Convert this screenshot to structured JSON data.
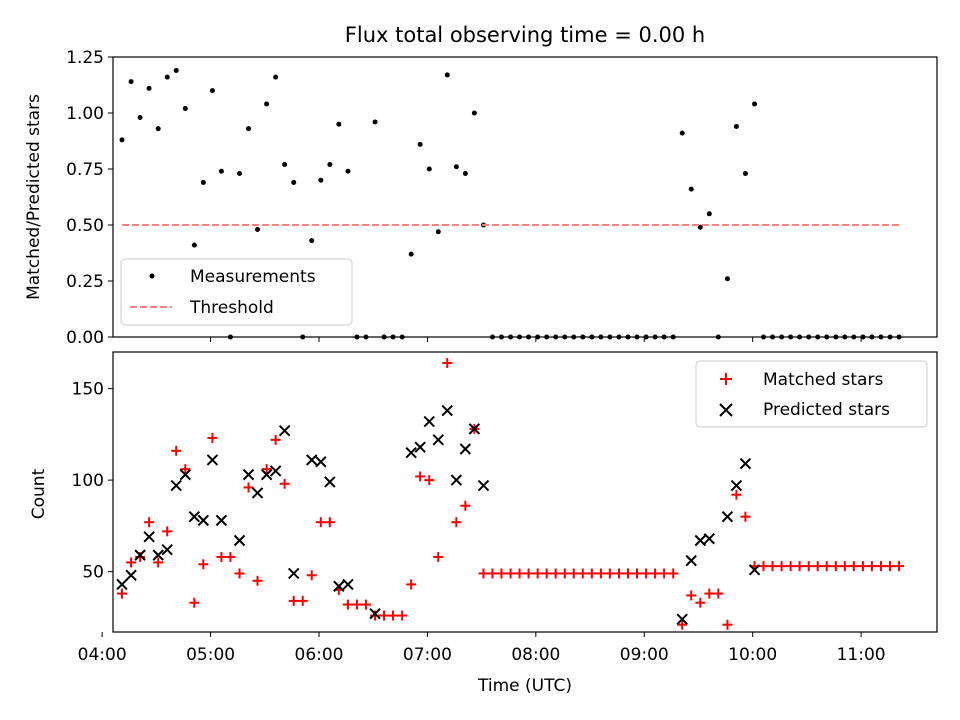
{
  "chart_data": [
    {
      "type": "scatter",
      "title": "Flux total observing time = 0.00 h",
      "xlabel": "",
      "ylabel": "Matched/Predicted stars",
      "xlim": [
        4.1,
        11.7
      ],
      "ylim": [
        0,
        1.25
      ],
      "yticks": [
        0,
        0.25,
        0.5,
        0.75,
        1.0,
        1.25
      ],
      "ytick_labels": [
        "0.00",
        "0.25",
        "0.50",
        "0.75",
        "1.00",
        "1.25"
      ],
      "legend_position": "lower-left",
      "series": [
        {
          "name": "Measurements",
          "marker": "dot",
          "color": "#000000",
          "x": [
            4.183,
            4.267,
            4.35,
            4.433,
            4.517,
            4.6,
            4.683,
            4.767,
            4.85,
            4.933,
            5.017,
            5.1,
            5.183,
            5.267,
            5.35,
            5.433,
            5.517,
            5.6,
            5.683,
            5.767,
            5.85,
            5.933,
            6.017,
            6.1,
            6.183,
            6.267,
            6.35,
            6.433,
            6.517,
            6.6,
            6.683,
            6.767,
            6.85,
            6.933,
            7.017,
            7.1,
            7.183,
            7.267,
            7.35,
            7.433,
            7.517,
            7.6,
            7.683,
            7.767,
            7.85,
            7.933,
            8.017,
            8.1,
            8.183,
            8.267,
            8.35,
            8.433,
            8.517,
            8.6,
            8.683,
            8.767,
            8.85,
            8.933,
            9.017,
            9.1,
            9.183,
            9.267,
            9.35,
            9.433,
            9.517,
            9.6,
            9.683,
            9.767,
            9.85,
            9.933,
            10.017,
            10.1,
            10.183,
            10.267,
            10.35,
            10.433,
            10.517,
            10.6,
            10.683,
            10.767,
            10.85,
            10.933,
            11.017,
            11.1,
            11.183,
            11.267,
            11.35
          ],
          "y": [
            0.88,
            1.14,
            0.98,
            1.11,
            0.93,
            1.16,
            1.19,
            1.02,
            0.41,
            0.69,
            1.1,
            0.74,
            0.0,
            0.73,
            0.93,
            0.48,
            1.04,
            1.16,
            0.77,
            0.69,
            0.0,
            0.43,
            0.7,
            0.77,
            0.95,
            0.74,
            0.0,
            0.0,
            0.96,
            0.0,
            0.0,
            0.0,
            0.37,
            0.86,
            0.75,
            0.47,
            1.17,
            0.76,
            0.73,
            1.0,
            0.5,
            0.0,
            0.0,
            0.0,
            0.0,
            0.0,
            0.0,
            0.0,
            0.0,
            0.0,
            0.0,
            0.0,
            0.0,
            0.0,
            0.0,
            0.0,
            0.0,
            0.0,
            0.0,
            0.0,
            0.0,
            0.0,
            0.91,
            0.66,
            0.49,
            0.55,
            0.0,
            0.26,
            0.94,
            0.73,
            1.04,
            0.0,
            0.0,
            0.0,
            0.0,
            0.0,
            0.0,
            0.0,
            0.0,
            0.0,
            0.0,
            0.0,
            0.0,
            0.0,
            0.0,
            0.0,
            0.0
          ]
        },
        {
          "name": "Threshold",
          "style": "dashed",
          "color": "#ff8080",
          "x": [
            4.183,
            11.35
          ],
          "y": [
            0.5,
            0.5
          ]
        }
      ]
    },
    {
      "type": "scatter",
      "title": "",
      "xlabel": "Time (UTC)",
      "ylabel": "Count",
      "xlim": [
        4.1,
        11.7
      ],
      "ylim": [
        17,
        170
      ],
      "yticks": [
        50,
        100,
        150
      ],
      "ytick_labels": [
        "50",
        "100",
        "150"
      ],
      "xticks": [
        4,
        5,
        6,
        7,
        8,
        9,
        10,
        11
      ],
      "xtick_labels": [
        "04:00",
        "05:00",
        "06:00",
        "07:00",
        "08:00",
        "09:00",
        "10:00",
        "11:00"
      ],
      "legend_position": "top-right",
      "series": [
        {
          "name": "Matched stars",
          "marker": "plus",
          "color": "#ff0000",
          "x": [
            4.183,
            4.267,
            4.35,
            4.433,
            4.517,
            4.6,
            4.683,
            4.767,
            4.85,
            4.933,
            5.017,
            5.1,
            5.183,
            5.267,
            5.35,
            5.433,
            5.517,
            5.6,
            5.683,
            5.767,
            5.85,
            5.933,
            6.017,
            6.1,
            6.183,
            6.267,
            6.35,
            6.433,
            6.517,
            6.6,
            6.683,
            6.767,
            6.85,
            6.933,
            7.017,
            7.1,
            7.183,
            7.267,
            7.35,
            7.433,
            7.517,
            7.6,
            7.683,
            7.767,
            7.85,
            7.933,
            8.017,
            8.1,
            8.183,
            8.267,
            8.35,
            8.433,
            8.517,
            8.6,
            8.683,
            8.767,
            8.85,
            8.933,
            9.017,
            9.1,
            9.183,
            9.267,
            9.35,
            9.433,
            9.517,
            9.6,
            9.683,
            9.767,
            9.85,
            9.933,
            10.017,
            10.1,
            10.183,
            10.267,
            10.35,
            10.433,
            10.517,
            10.6,
            10.683,
            10.767,
            10.85,
            10.933,
            11.017,
            11.1,
            11.183,
            11.267,
            11.35
          ],
          "y": [
            38,
            55,
            58,
            77,
            55,
            72,
            116,
            106,
            33,
            54,
            123,
            58,
            58,
            49,
            96,
            45,
            106,
            122,
            98,
            34,
            34,
            48,
            77,
            77,
            40,
            32,
            32,
            32,
            26,
            26,
            26,
            26,
            43,
            102,
            100,
            58,
            164,
            77,
            86,
            128,
            49,
            49,
            49,
            49,
            49,
            49,
            49,
            49,
            49,
            49,
            49,
            49,
            49,
            49,
            49,
            49,
            49,
            49,
            49,
            49,
            49,
            49,
            21,
            37,
            33,
            38,
            38,
            21,
            92,
            80,
            53,
            53,
            53,
            53,
            53,
            53,
            53,
            53,
            53,
            53,
            53,
            53,
            53,
            53,
            53,
            53,
            53
          ]
        },
        {
          "name": "Predicted stars",
          "marker": "x",
          "color": "#000000",
          "x": [
            4.183,
            4.267,
            4.35,
            4.433,
            4.517,
            4.6,
            4.683,
            4.767,
            4.85,
            4.933,
            5.017,
            5.1,
            5.267,
            5.35,
            5.433,
            5.517,
            5.6,
            5.683,
            5.767,
            5.933,
            6.017,
            6.1,
            6.183,
            6.267,
            6.517,
            6.85,
            6.933,
            7.017,
            7.1,
            7.183,
            7.267,
            7.35,
            7.433,
            7.517,
            9.35,
            9.433,
            9.517,
            9.6,
            9.767,
            9.85,
            9.933,
            10.017
          ],
          "y": [
            43,
            48,
            59,
            69,
            59,
            62,
            97,
            103,
            80,
            78,
            111,
            78,
            67,
            103,
            93,
            103,
            105,
            127,
            49,
            111,
            110,
            99,
            42,
            43,
            27,
            115,
            118,
            132,
            122,
            138,
            100,
            117,
            128,
            97,
            24,
            56,
            67,
            68,
            80,
            97,
            109,
            51
          ]
        }
      ]
    }
  ]
}
